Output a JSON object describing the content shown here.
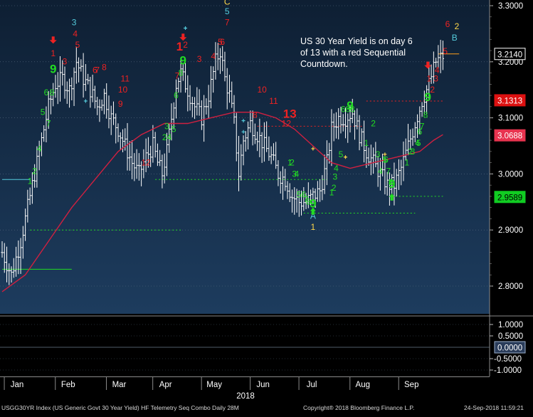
{
  "chart_data": {
    "type": "bar",
    "subtype": "ohlc-bar",
    "theme": {
      "background_top": "#0e1f33",
      "background_bottom": "#1d3c5e",
      "bar_color": "#ffffff",
      "ma_color": "#d02040",
      "grid_color": "#5a6d84",
      "setup_color": "#22dd22",
      "countdown_color": "#ee2222",
      "accent_cyan": "#55ccdd",
      "accent_yellow": "#ffd84a"
    },
    "y_axis": {
      "min": 2.76,
      "max": 3.31,
      "ticks": [
        "3.3000",
        "3.2000",
        "3.1000",
        "3.0000",
        "2.9000",
        "2.8000"
      ],
      "tick_values": [
        3.3,
        3.2,
        3.1,
        3.0,
        2.9,
        2.8
      ]
    },
    "x_axis": {
      "months": [
        "Jan",
        "Feb",
        "Mar",
        "Apr",
        "May",
        "Jun",
        "Jul",
        "Aug",
        "Sep"
      ],
      "year": "2018"
    },
    "close_path": [
      [
        0,
        2.86
      ],
      [
        4,
        2.82
      ],
      [
        8,
        2.88
      ],
      [
        12,
        2.96
      ],
      [
        16,
        3.04
      ],
      [
        20,
        3.12
      ],
      [
        23,
        3.16
      ],
      [
        26,
        3.17
      ],
      [
        29,
        3.15
      ],
      [
        32,
        3.2
      ],
      [
        35,
        3.17
      ],
      [
        38,
        3.15
      ],
      [
        41,
        3.12
      ],
      [
        44,
        3.14
      ],
      [
        47,
        3.1
      ],
      [
        50,
        3.08
      ],
      [
        53,
        3.05
      ],
      [
        56,
        3.02
      ],
      [
        59,
        3.0
      ],
      [
        62,
        3.03
      ],
      [
        65,
        3.05
      ],
      [
        67,
        3.02
      ],
      [
        69,
        3.0
      ],
      [
        71,
        3.04
      ],
      [
        73,
        3.1
      ],
      [
        75,
        3.16
      ],
      [
        77,
        3.18
      ],
      [
        80,
        3.15
      ],
      [
        83,
        3.12
      ],
      [
        86,
        3.1
      ],
      [
        89,
        3.14
      ],
      [
        92,
        3.2
      ],
      [
        94,
        3.22
      ],
      [
        96,
        3.17
      ],
      [
        98,
        3.14
      ],
      [
        100,
        3.09
      ],
      [
        102,
        3.0
      ],
      [
        104,
        3.06
      ],
      [
        107,
        3.09
      ],
      [
        110,
        3.07
      ],
      [
        113,
        3.05
      ],
      [
        116,
        3.03
      ],
      [
        119,
        3.0
      ],
      [
        122,
        2.99
      ],
      [
        125,
        2.96
      ],
      [
        128,
        2.95
      ],
      [
        131,
        2.95
      ],
      [
        134,
        2.96
      ],
      [
        137,
        2.97
      ],
      [
        140,
        3.02
      ],
      [
        142,
        3.08
      ],
      [
        145,
        3.1
      ],
      [
        148,
        3.1
      ],
      [
        151,
        3.11
      ],
      [
        154,
        3.07
      ],
      [
        157,
        3.04
      ],
      [
        160,
        3.02
      ],
      [
        163,
        3.0
      ],
      [
        166,
        2.98
      ],
      [
        169,
        2.98
      ],
      [
        172,
        3.01
      ],
      [
        175,
        3.05
      ],
      [
        178,
        3.09
      ],
      [
        181,
        3.13
      ],
      [
        184,
        3.16
      ],
      [
        187,
        3.2
      ],
      [
        190,
        3.21
      ]
    ],
    "moving_average": [
      [
        0,
        2.79
      ],
      [
        10,
        2.82
      ],
      [
        20,
        2.88
      ],
      [
        30,
        2.94
      ],
      [
        40,
        2.99
      ],
      [
        50,
        3.04
      ],
      [
        60,
        3.07
      ],
      [
        70,
        3.09
      ],
      [
        80,
        3.09
      ],
      [
        90,
        3.1
      ],
      [
        100,
        3.11
      ],
      [
        110,
        3.11
      ],
      [
        118,
        3.1
      ],
      [
        126,
        3.08
      ],
      [
        134,
        3.05
      ],
      [
        142,
        3.02
      ],
      [
        150,
        3.01
      ],
      [
        160,
        3.02
      ],
      [
        170,
        3.03
      ],
      [
        180,
        3.04
      ],
      [
        186,
        3.06
      ],
      [
        190,
        3.07
      ]
    ],
    "lower_panel": {
      "ticks": [
        "1.0000",
        "0.5000",
        "-0.5000",
        "-1.0000"
      ],
      "tick_values": [
        1.0,
        0.5,
        -0.5,
        -1.0
      ],
      "current": "0.0000"
    },
    "price_tags": [
      {
        "value": 3.214,
        "label": "3.2140",
        "bg": "#000000",
        "fg": "#ffffff",
        "border": "#ffffff"
      },
      {
        "value": 3.1313,
        "label": "3.1313",
        "bg": "#dd1111",
        "fg": "#ffffff",
        "border": "#dd1111"
      },
      {
        "value": 3.0688,
        "label": "3.0688",
        "bg": "#e8334f",
        "fg": "#ffffff",
        "border": "#e8334f"
      },
      {
        "value": 2.9589,
        "label": "2.9589",
        "bg": "#11cc22",
        "fg": "#000000",
        "border": "#11cc22"
      }
    ],
    "levels": [
      {
        "x1": 0,
        "x2": 12,
        "y": 2.99,
        "color": "#55ccdd",
        "dash": ""
      },
      {
        "x1": 0,
        "x2": 30,
        "y": 2.83,
        "color": "#22dd22",
        "dash": ""
      },
      {
        "x1": 12,
        "x2": 77,
        "y": 2.9,
        "color": "#22dd22",
        "dash": "2,3"
      },
      {
        "x1": 66,
        "x2": 140,
        "y": 2.99,
        "color": "#22dd22",
        "dash": "2,3"
      },
      {
        "x1": 130,
        "x2": 178,
        "y": 2.93,
        "color": "#22dd22",
        "dash": "2,3"
      },
      {
        "x1": 168,
        "x2": 190,
        "y": 2.96,
        "color": "#22dd22",
        "dash": "2,3"
      },
      {
        "x1": 110,
        "x2": 156,
        "y": 3.085,
        "color": "#ee2222",
        "dash": "2,3"
      },
      {
        "x1": 157,
        "x2": 190,
        "y": 3.13,
        "color": "#ee2222",
        "dash": "2,3"
      },
      {
        "x1": 188,
        "x2": 197,
        "y": 3.214,
        "color": "#ff9f1a",
        "dash": ""
      }
    ],
    "markers": [
      {
        "t": "1",
        "x": 12,
        "y": 2.982,
        "c": "#22dd22",
        "s": 12
      },
      {
        "t": "2",
        "x": 14,
        "y": 3.0,
        "c": "#22dd22",
        "s": 12
      },
      {
        "t": "4",
        "x": 16,
        "y": 3.04,
        "c": "#22dd22",
        "s": 12
      },
      {
        "t": "5",
        "x": 17.5,
        "y": 3.105,
        "c": "#22dd22",
        "s": 12
      },
      {
        "t": "6",
        "x": 19,
        "y": 3.14,
        "c": "#22dd22",
        "s": 12
      },
      {
        "t": "7",
        "x": 20,
        "y": 3.085,
        "c": "#22dd22",
        "s": 12
      },
      {
        "t": "8",
        "x": 21.5,
        "y": 3.14,
        "c": "#22dd22",
        "s": 12
      },
      {
        "t": "9",
        "x": 22,
        "y": 3.18,
        "c": "#22dd22",
        "s": 17
      },
      {
        "t": "1",
        "x": 22,
        "y": 3.21,
        "c": "#ee2222",
        "s": 12
      },
      {
        "t": "3",
        "x": 27,
        "y": 3.195,
        "c": "#ee2222",
        "s": 12
      },
      {
        "t": "3",
        "x": 31,
        "y": 3.265,
        "c": "#55ccdd",
        "s": 12
      },
      {
        "t": "4",
        "x": 31.5,
        "y": 3.245,
        "c": "#ee2222",
        "s": 12
      },
      {
        "t": "5",
        "x": 32.5,
        "y": 3.225,
        "c": "#ee2222",
        "s": 12
      },
      {
        "t": "6",
        "x": 40,
        "y": 3.18,
        "c": "#ee2222",
        "s": 12
      },
      {
        "t": "7",
        "x": 41,
        "y": 3.18,
        "c": "#ee2222",
        "s": 12
      },
      {
        "t": "8",
        "x": 44,
        "y": 3.185,
        "c": "#ee2222",
        "s": 12
      },
      {
        "t": "11",
        "x": 53,
        "y": 3.165,
        "c": "#ee2222",
        "s": 12
      },
      {
        "t": "10",
        "x": 52,
        "y": 3.145,
        "c": "#ee2222",
        "s": 12
      },
      {
        "t": "9",
        "x": 51,
        "y": 3.12,
        "c": "#ee2222",
        "s": 12
      },
      {
        "t": "12",
        "x": 62,
        "y": 3.015,
        "c": "#ee2222",
        "s": 12
      },
      {
        "t": "3",
        "x": 71,
        "y": 3.08,
        "c": "#22dd22",
        "s": 12
      },
      {
        "t": "5",
        "x": 74,
        "y": 3.075,
        "c": "#22dd22",
        "s": 12
      },
      {
        "t": "4",
        "x": 72,
        "y": 3.06,
        "c": "#22dd22",
        "s": 12
      },
      {
        "t": "2",
        "x": 70,
        "y": 3.06,
        "c": "#22dd22",
        "s": 12
      },
      {
        "t": "6",
        "x": 75,
        "y": 3.135,
        "c": "#22dd22",
        "s": 12
      },
      {
        "t": "7",
        "x": 75.5,
        "y": 3.17,
        "c": "#ee2222",
        "s": 12
      },
      {
        "t": "8",
        "x": 77,
        "y": 3.175,
        "c": "#22dd22",
        "s": 12
      },
      {
        "t": "9",
        "x": 78,
        "y": 3.195,
        "c": "#22dd22",
        "s": 17
      },
      {
        "t": "1",
        "x": 76.5,
        "y": 3.22,
        "c": "#ee2222",
        "s": 17
      },
      {
        "t": "2",
        "x": 79,
        "y": 3.225,
        "c": "#ee2222",
        "s": 12
      },
      {
        "t": "3",
        "x": 85,
        "y": 3.2,
        "c": "#ee2222",
        "s": 12
      },
      {
        "t": "4",
        "x": 91,
        "y": 3.205,
        "c": "#ee2222",
        "s": 12
      },
      {
        "t": "5",
        "x": 94,
        "y": 3.23,
        "c": "#ee2222",
        "s": 12
      },
      {
        "t": "6",
        "x": 95,
        "y": 3.23,
        "c": "#ee2222",
        "s": 12
      },
      {
        "t": "7",
        "x": 97,
        "y": 3.265,
        "c": "#ee2222",
        "s": 12
      },
      {
        "t": "5",
        "x": 97,
        "y": 3.285,
        "c": "#55ccdd",
        "s": 12
      },
      {
        "t": "C",
        "x": 97,
        "y": 3.302,
        "c": "#ffd84a",
        "s": 12
      },
      {
        "t": "10",
        "x": 112,
        "y": 3.145,
        "c": "#ee2222",
        "s": 12
      },
      {
        "t": "11",
        "x": 117,
        "y": 3.125,
        "c": "#ee2222",
        "s": 12
      },
      {
        "t": "8",
        "x": 109,
        "y": 3.1,
        "c": "#ee2222",
        "s": 12
      },
      {
        "t": "13",
        "x": 124,
        "y": 3.1,
        "c": "#ee2222",
        "s": 17
      },
      {
        "t": "12",
        "x": 122.5,
        "y": 3.085,
        "c": "#ee2222",
        "s": 12
      },
      {
        "t": "1",
        "x": 124,
        "y": 3.015,
        "c": "#22dd22",
        "s": 12
      },
      {
        "t": "2",
        "x": 125,
        "y": 3.015,
        "c": "#22dd22",
        "s": 12
      },
      {
        "t": "3",
        "x": 126,
        "y": 2.995,
        "c": "#22dd22",
        "s": 12
      },
      {
        "t": "4",
        "x": 127,
        "y": 2.995,
        "c": "#22dd22",
        "s": 12
      },
      {
        "t": "5",
        "x": 128,
        "y": 2.958,
        "c": "#22dd22",
        "s": 12
      },
      {
        "t": "6",
        "x": 130,
        "y": 2.958,
        "c": "#22dd22",
        "s": 12
      },
      {
        "t": "7",
        "x": 131,
        "y": 2.95,
        "c": "#22dd22",
        "s": 12
      },
      {
        "t": "8",
        "x": 132,
        "y": 2.945,
        "c": "#22dd22",
        "s": 12
      },
      {
        "t": "9",
        "x": 134,
        "y": 2.94,
        "c": "#22dd22",
        "s": 17
      },
      {
        "t": "A",
        "x": 134,
        "y": 2.92,
        "c": "#55ccdd",
        "s": 12
      },
      {
        "t": "1",
        "x": 134,
        "y": 2.9,
        "c": "#ffd84a",
        "s": 12
      },
      {
        "t": "1",
        "x": 142,
        "y": 2.962,
        "c": "#22dd22",
        "s": 12
      },
      {
        "t": "2",
        "x": 143,
        "y": 2.97,
        "c": "#22dd22",
        "s": 12
      },
      {
        "t": "3",
        "x": 143.5,
        "y": 2.99,
        "c": "#22dd22",
        "s": 12
      },
      {
        "t": "4",
        "x": 144,
        "y": 3.005,
        "c": "#22dd22",
        "s": 12
      },
      {
        "t": "5",
        "x": 146,
        "y": 3.03,
        "c": "#22dd22",
        "s": 12
      },
      {
        "t": "6",
        "x": 147,
        "y": 3.11,
        "c": "#22dd22",
        "s": 12
      },
      {
        "t": "8",
        "x": 149,
        "y": 3.11,
        "c": "#22dd22",
        "s": 12
      },
      {
        "t": "9",
        "x": 150,
        "y": 3.115,
        "c": "#22dd22",
        "s": 17
      },
      {
        "t": "8",
        "x": 151,
        "y": 3.11,
        "c": "#22dd22",
        "s": 12
      },
      {
        "t": "1",
        "x": 157,
        "y": 3.05,
        "c": "#22dd22",
        "s": 12
      },
      {
        "t": "2",
        "x": 160,
        "y": 3.085,
        "c": "#22dd22",
        "s": 12
      },
      {
        "t": "3",
        "x": 162,
        "y": 3.03,
        "c": "#22dd22",
        "s": 12
      },
      {
        "t": "4",
        "x": 163,
        "y": 3.0,
        "c": "#22dd22",
        "s": 12
      },
      {
        "t": "5",
        "x": 165,
        "y": 3.02,
        "c": "#22dd22",
        "s": 12
      },
      {
        "t": "6",
        "x": 165.5,
        "y": 3.02,
        "c": "#22dd22",
        "s": 12
      },
      {
        "t": "7",
        "x": 166.5,
        "y": 3.0,
        "c": "#22dd22",
        "s": 12
      },
      {
        "t": "8",
        "x": 167.5,
        "y": 2.98,
        "c": "#22dd22",
        "s": 12
      },
      {
        "t": "9",
        "x": 168,
        "y": 2.975,
        "c": "#22dd22",
        "s": 17
      },
      {
        "t": "1",
        "x": 174.5,
        "y": 3.015,
        "c": "#22dd22",
        "s": 12
      },
      {
        "t": "2",
        "x": 176,
        "y": 3.035,
        "c": "#22dd22",
        "s": 12
      },
      {
        "t": "3",
        "x": 177,
        "y": 3.035,
        "c": "#22dd22",
        "s": 12
      },
      {
        "t": "4",
        "x": 179,
        "y": 3.05,
        "c": "#22dd22",
        "s": 12
      },
      {
        "t": "5",
        "x": 179.5,
        "y": 3.05,
        "c": "#22dd22",
        "s": 12
      },
      {
        "t": "6",
        "x": 180,
        "y": 3.07,
        "c": "#22dd22",
        "s": 12
      },
      {
        "t": "7",
        "x": 181,
        "y": 3.08,
        "c": "#22dd22",
        "s": 12
      },
      {
        "t": "8",
        "x": 182.5,
        "y": 3.1,
        "c": "#22dd22",
        "s": 12
      },
      {
        "t": "9",
        "x": 183.5,
        "y": 3.13,
        "c": "#22dd22",
        "s": 17
      },
      {
        "t": "1",
        "x": 184,
        "y": 3.165,
        "c": "#ee2222",
        "s": 12
      },
      {
        "t": "2",
        "x": 185.5,
        "y": 3.145,
        "c": "#ee2222",
        "s": 12
      },
      {
        "t": "3",
        "x": 187,
        "y": 3.165,
        "c": "#ee2222",
        "s": 12
      },
      {
        "t": "4",
        "x": 187.5,
        "y": 3.18,
        "c": "#ee2222",
        "s": 12
      },
      {
        "t": "5",
        "x": 191,
        "y": 3.214,
        "c": "#ee2222",
        "s": 12
      },
      {
        "t": "6",
        "x": 192,
        "y": 3.262,
        "c": "#ee2222",
        "s": 12
      },
      {
        "t": "B",
        "x": 195,
        "y": 3.238,
        "c": "#55ccdd",
        "s": 12
      },
      {
        "t": "2",
        "x": 196,
        "y": 3.258,
        "c": "#ffd84a",
        "s": 12
      }
    ],
    "arrows": [
      {
        "x": 22,
        "y": 3.235,
        "dir": "down",
        "c": "#ee2222"
      },
      {
        "x": 78,
        "y": 3.24,
        "dir": "down",
        "c": "#ee2222"
      },
      {
        "x": 183.5,
        "y": 3.19,
        "dir": "down",
        "c": "#ee2222"
      },
      {
        "x": 134,
        "y": 2.935,
        "dir": "up",
        "c": "#22dd22"
      },
      {
        "x": 168,
        "y": 2.96,
        "dir": "up",
        "c": "#22dd22"
      }
    ],
    "plus_marks": [
      {
        "x": 36,
        "y": 3.13,
        "c": "#55ccdd"
      },
      {
        "x": 79,
        "y": 3.26,
        "c": "#55ccdd"
      },
      {
        "x": 104,
        "y": 3.095,
        "c": "#55ccdd"
      },
      {
        "x": 104,
        "y": 3.075,
        "c": "#55ccdd"
      },
      {
        "x": 134,
        "y": 3.045,
        "c": "#ffd84a"
      },
      {
        "x": 148,
        "y": 3.03,
        "c": "#ffd84a"
      },
      {
        "x": 165,
        "y": 3.035,
        "c": "#ffd84a"
      }
    ]
  },
  "annotation": {
    "lines": [
      "US 30 Year Yield is on day 6",
      "of 13 with a red Sequential",
      "Countdown."
    ]
  },
  "footer": {
    "left": "USGG30YR Index (US Generic Govt 30 Year Yield) HF Telemetry Seq Combo  Daily 28M",
    "center": "Copyright® 2018 Bloomberg Finance L.P.",
    "right": "24-Sep-2018 11:59:21"
  }
}
